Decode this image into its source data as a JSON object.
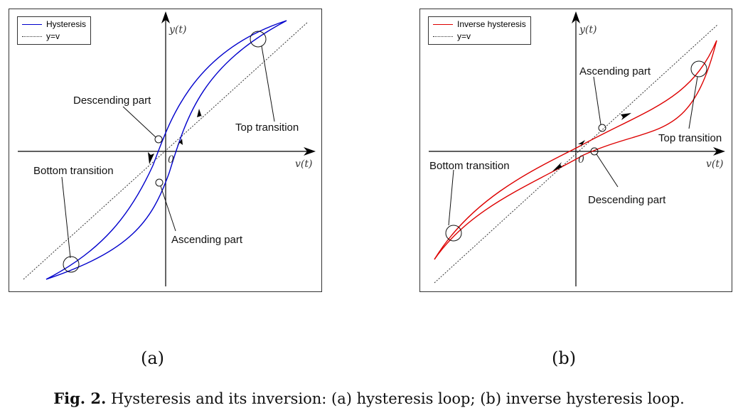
{
  "chart_data": [
    {
      "type": "line",
      "panel_label": "(a)",
      "xlabel": "v(t)",
      "ylabel": "y(t)",
      "origin_label": "0",
      "series": [
        {
          "name": "Hysteresis",
          "color": "#0000cc",
          "style": "solid"
        },
        {
          "name": "y=v",
          "color": "#333333",
          "style": "dotted"
        }
      ],
      "legend_position": "top-left",
      "annotations": [
        "Descending part",
        "Ascending part",
        "Top transition",
        "Bottom transition"
      ]
    },
    {
      "type": "line",
      "panel_label": "(b)",
      "xlabel": "v(t)",
      "ylabel": "y(t)",
      "origin_label": "0",
      "series": [
        {
          "name": "Inverse hysteresis",
          "color": "#dd0000",
          "style": "solid"
        },
        {
          "name": "y=v",
          "color": "#333333",
          "style": "dotted"
        }
      ],
      "legend_position": "top-left",
      "annotations": [
        "Ascending part",
        "Descending part",
        "Top transition",
        "Bottom transition"
      ]
    }
  ],
  "caption": {
    "prefix": "Fig. 2.",
    "text": "Hysteresis and its inversion: (a) hysteresis loop; (b) inverse hysteresis loop."
  }
}
